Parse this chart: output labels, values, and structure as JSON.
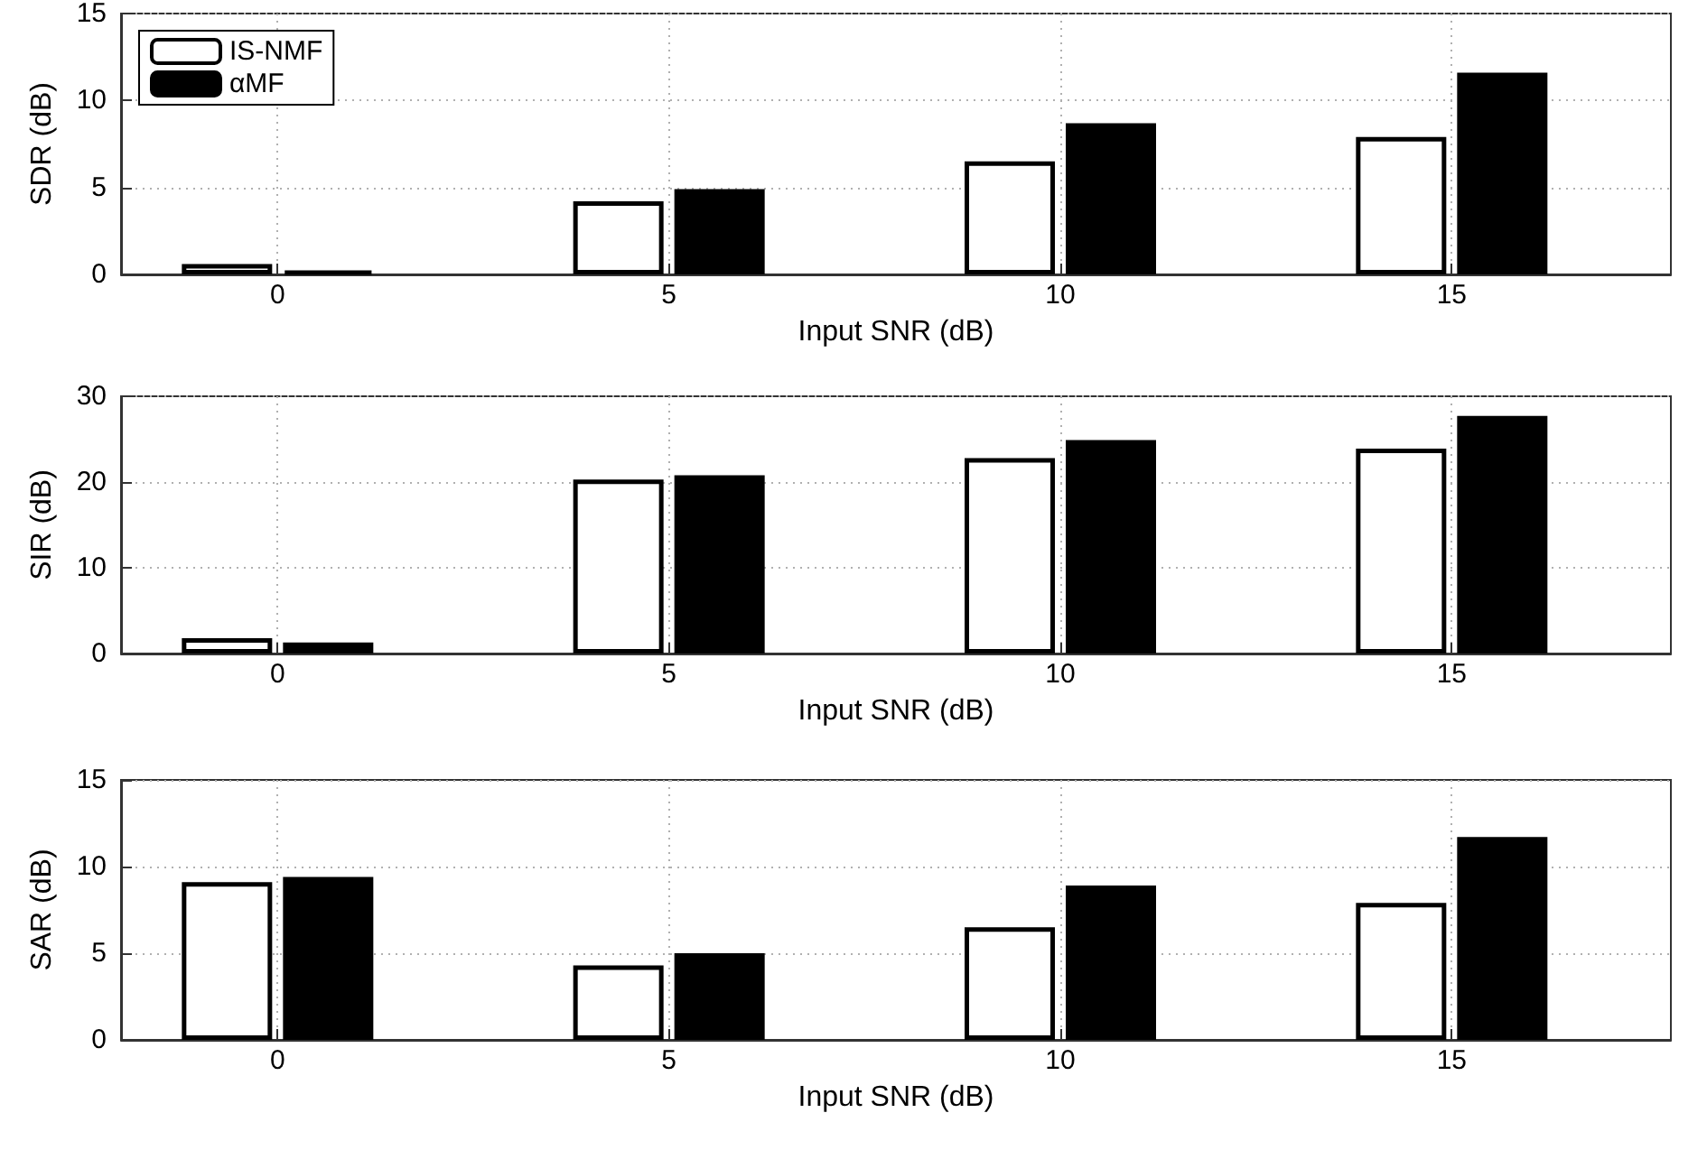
{
  "chart_data": [
    {
      "type": "bar",
      "x": [
        0,
        5,
        10,
        15
      ],
      "xlabel": "Input SNR (dB)",
      "ylabel": "SDR (dB)",
      "xlim": [
        -2,
        17.8
      ],
      "xticks": [
        0,
        5,
        10,
        15
      ],
      "ylim": [
        0,
        15
      ],
      "yticks": [
        0,
        5,
        10,
        15
      ],
      "grid": true,
      "legend": "top left",
      "series": [
        {
          "name": "IS-NMF",
          "color": "#ffffff",
          "values": [
            0.6,
            4.2,
            6.5,
            7.9
          ]
        },
        {
          "name": "αMF",
          "color": "#000000",
          "values": [
            0.2,
            4.9,
            8.7,
            11.6
          ]
        }
      ]
    },
    {
      "type": "bar",
      "x": [
        0,
        5,
        10,
        15
      ],
      "xlabel": "Input SNR (dB)",
      "ylabel": "SIR (dB)",
      "xlim": [
        -2,
        17.8
      ],
      "xticks": [
        0,
        5,
        10,
        15
      ],
      "ylim": [
        0,
        30
      ],
      "yticks": [
        0,
        10,
        20,
        30
      ],
      "grid": true,
      "series": [
        {
          "color": "#ffffff",
          "values": [
            1.8,
            20.3,
            22.8,
            23.9
          ]
        },
        {
          "color": "#000000",
          "values": [
            1.3,
            20.8,
            24.9,
            27.7
          ]
        }
      ]
    },
    {
      "type": "bar",
      "x": [
        0,
        5,
        10,
        15
      ],
      "xlabel": "Input SNR (dB)",
      "ylabel": "SAR (dB)",
      "xlim": [
        -2,
        17.8
      ],
      "xticks": [
        0,
        5,
        10,
        15
      ],
      "ylim": [
        0,
        15
      ],
      "yticks": [
        0,
        5,
        10,
        15
      ],
      "grid": true,
      "series": [
        {
          "color": "#ffffff",
          "values": [
            9.1,
            4.3,
            6.5,
            7.9
          ]
        },
        {
          "color": "#000000",
          "values": [
            9.4,
            5.0,
            8.9,
            11.7
          ]
        }
      ]
    }
  ]
}
